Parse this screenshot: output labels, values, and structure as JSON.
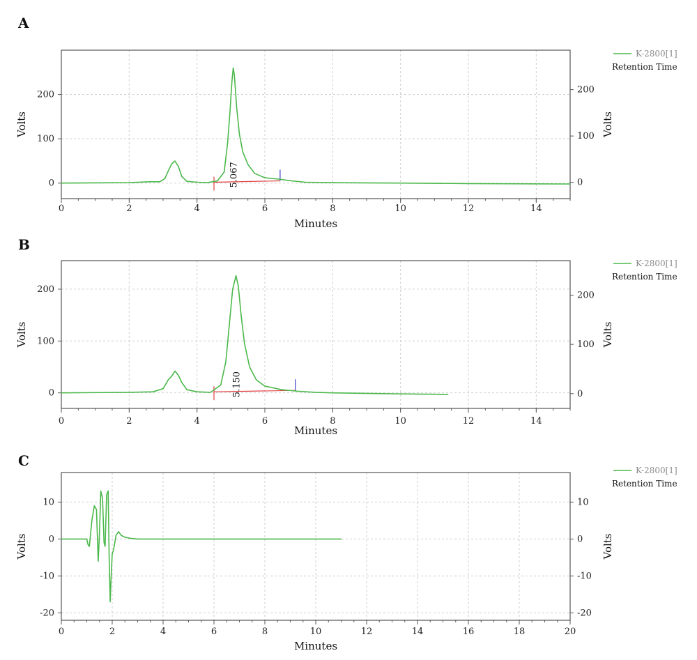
{
  "colors": {
    "trace": "#4bb84b",
    "baseline": "#e04040",
    "marker_end": "#4040cc",
    "grid": "#cfcfcf",
    "legend_grey": "#8a8a8a"
  },
  "chart_data": [
    {
      "type": "line",
      "panel_label": "A",
      "xlabel": "Minutes",
      "ylabel": "Volts",
      "y2label": "Volts",
      "xlim": [
        0,
        15
      ],
      "ylim": [
        -35,
        300
      ],
      "y2lim": [
        -35,
        285
      ],
      "xticks": [
        0,
        2,
        4,
        6,
        8,
        10,
        12,
        14
      ],
      "yticks": [
        0,
        100,
        200
      ],
      "y2ticks": [
        0,
        100,
        200
      ],
      "grid": true,
      "legend": {
        "placement": "right",
        "entries": [
          "K-2800[1]",
          "Retention Time"
        ]
      },
      "series": [
        {
          "name": "K-2800[1]",
          "x": [
            0,
            2.0,
            2.6,
            2.9,
            3.05,
            3.15,
            3.25,
            3.35,
            3.45,
            3.55,
            3.7,
            4.0,
            4.3,
            4.6,
            4.8,
            4.9,
            4.97,
            5.03,
            5.067,
            5.1,
            5.17,
            5.25,
            5.35,
            5.5,
            5.7,
            6.0,
            6.4,
            6.8,
            7.2,
            8.0,
            10.0,
            12.0,
            15.0
          ],
          "y": [
            0,
            1,
            3,
            3,
            10,
            27,
            43,
            50,
            38,
            15,
            4,
            2,
            1,
            5,
            25,
            90,
            160,
            230,
            260,
            245,
            170,
            110,
            70,
            42,
            22,
            12,
            9,
            5,
            2,
            1,
            0,
            -1,
            -2
          ]
        }
      ],
      "peaks": [
        {
          "retention_time": "5.067",
          "baseline_start": 4.5,
          "baseline_end": 6.45
        }
      ]
    },
    {
      "type": "line",
      "panel_label": "B",
      "xlabel": "Minutes",
      "ylabel": "Volts",
      "y2label": "Volts",
      "xlim": [
        0,
        15
      ],
      "ylim": [
        -30,
        255
      ],
      "y2lim": [
        -30,
        270
      ],
      "xticks": [
        0,
        2,
        4,
        6,
        8,
        10,
        12,
        14
      ],
      "yticks": [
        0,
        100,
        200
      ],
      "y2ticks": [
        0,
        100,
        200
      ],
      "grid": true,
      "legend": {
        "placement": "right",
        "entries": [
          "K-2800[1]",
          "Retention Time"
        ]
      },
      "series": [
        {
          "name": "K-2800[1]",
          "x": [
            0,
            2.0,
            2.7,
            3.0,
            3.15,
            3.25,
            3.35,
            3.45,
            3.55,
            3.7,
            4.0,
            4.4,
            4.7,
            4.85,
            4.95,
            5.05,
            5.15,
            5.22,
            5.3,
            5.4,
            5.55,
            5.75,
            6.0,
            6.5,
            7.0,
            7.5,
            8.0,
            10.0,
            11.4
          ],
          "y": [
            0,
            1,
            2,
            8,
            25,
            32,
            42,
            34,
            20,
            6,
            2,
            1,
            15,
            60,
            130,
            200,
            226,
            205,
            150,
            95,
            50,
            25,
            13,
            6,
            3,
            1,
            0,
            -2,
            -3
          ]
        }
      ],
      "peaks": [
        {
          "retention_time": "5.150",
          "baseline_start": 4.5,
          "baseline_end": 6.9
        }
      ]
    },
    {
      "type": "line",
      "panel_label": "C",
      "xlabel": "Minutes",
      "ylabel": "",
      "y2label": "Volts",
      "xlim": [
        0,
        20
      ],
      "ylim": [
        -22,
        18
      ],
      "y2lim": [
        -22,
        18
      ],
      "xticks": [
        0,
        2,
        4,
        6,
        8,
        10,
        12,
        14,
        16,
        18,
        20
      ],
      "yticks": [
        -20,
        -10,
        0,
        10
      ],
      "y2ticks": [
        -20,
        -10,
        0,
        10
      ],
      "left_axis_label_outside": "Volts",
      "grid": true,
      "legend": {
        "placement": "right",
        "entries": [
          "K-2800[1]",
          "Retention Time"
        ]
      },
      "series": [
        {
          "name": "K-2800[1]",
          "x": [
            0,
            1.0,
            1.05,
            1.1,
            1.2,
            1.3,
            1.38,
            1.45,
            1.5,
            1.55,
            1.62,
            1.68,
            1.72,
            1.78,
            1.84,
            1.88,
            1.92,
            1.96,
            2.0,
            2.05,
            2.1,
            2.15,
            2.25,
            2.35,
            2.5,
            2.7,
            3.0,
            5.0,
            8.0,
            11.0
          ],
          "y": [
            0,
            0,
            -1.5,
            -2,
            5,
            9,
            8,
            -6,
            2,
            13,
            11,
            -1,
            -2,
            12,
            13,
            -5,
            -17,
            -10,
            -4,
            -3,
            -1,
            1,
            2,
            1,
            0.5,
            0.2,
            0,
            0,
            0,
            0
          ]
        }
      ],
      "peaks": []
    }
  ]
}
